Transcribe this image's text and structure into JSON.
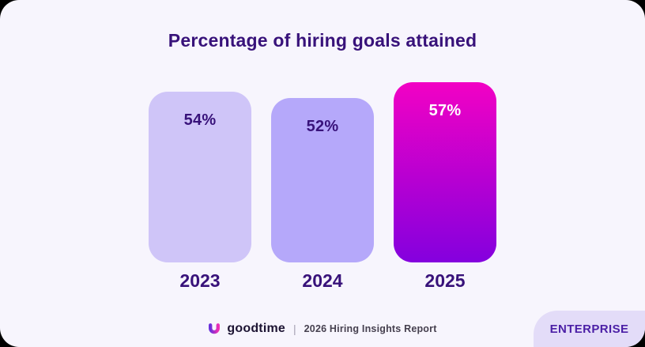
{
  "title": "Percentage of hiring goals attained",
  "chart_data": {
    "type": "bar",
    "title": "Percentage of hiring goals attained",
    "categories": [
      "2023",
      "2024",
      "2025"
    ],
    "values": [
      54,
      52,
      57
    ],
    "value_labels": [
      "54%",
      "52%",
      "57%"
    ],
    "unit": "%",
    "ylim": [
      0,
      60
    ],
    "grid": "off",
    "legend": "none",
    "bars": [
      {
        "category": "2023",
        "value": 54,
        "label": "54%",
        "fill": "#CFC5F8",
        "label_color": "#38127A"
      },
      {
        "category": "2024",
        "value": 52,
        "label": "52%",
        "fill": "#B5A8FA",
        "label_color": "#38127A"
      },
      {
        "category": "2025",
        "value": 57,
        "label": "57%",
        "fill_gradient": [
          "#F201C4",
          "#8400DE"
        ],
        "label_color": "#FFFFFF"
      }
    ]
  },
  "footer": {
    "brand": "goodtime",
    "divider": "|",
    "report": "2026 Hiring Insights Report",
    "logo_gradient": [
      "#6A30DC",
      "#ED2FB4"
    ]
  },
  "badge": {
    "label": "ENTERPRISE"
  },
  "colors": {
    "title": "#38127A",
    "axis_label": "#38127A",
    "card_bg": "#F7F5FD",
    "outside_bg": "#000000",
    "badge_bg": "#E3DCF8",
    "badge_text": "#4B1FA6",
    "footer_text": "#46404F",
    "divider": "#A49FB2",
    "wordmark": "#1D1433"
  }
}
